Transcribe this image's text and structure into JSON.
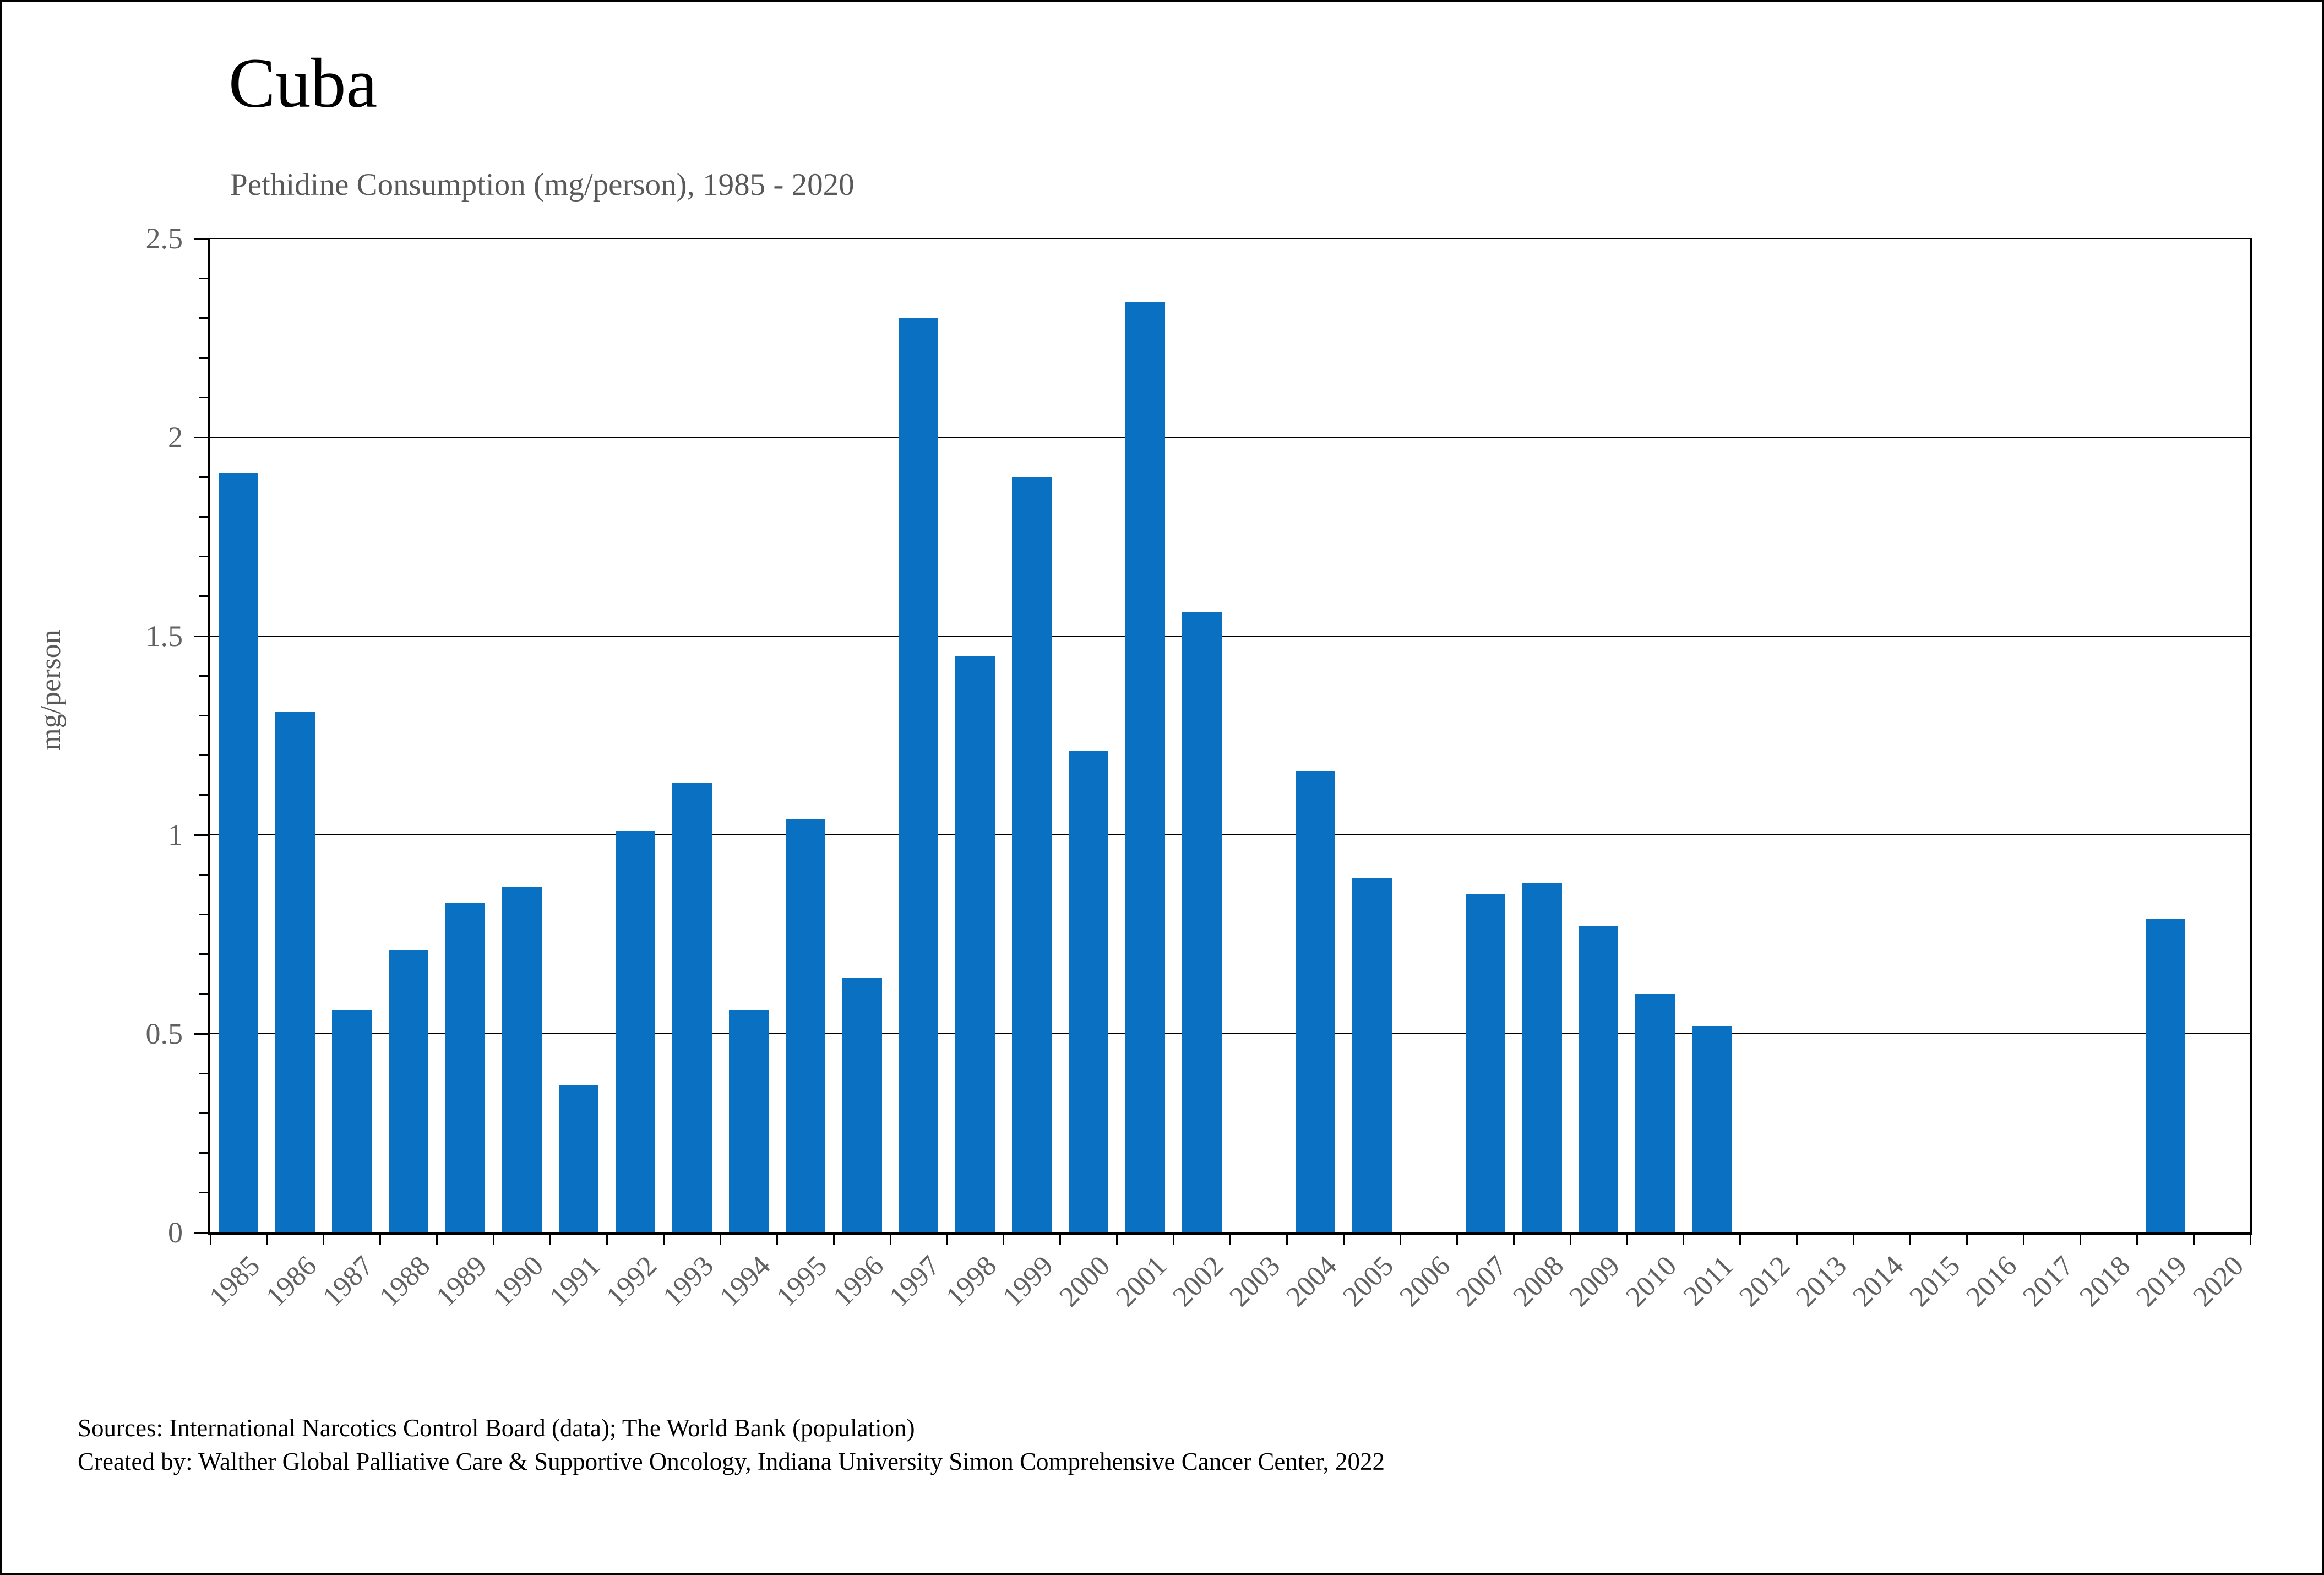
{
  "header": {
    "title": "Cuba",
    "subtitle": "Pethidine Consumption (mg/person), 1985 - 2020"
  },
  "footer": {
    "line1": "Sources: International Narcotics Control Board (data); The World Bank (population)",
    "line2": "Created by: Walther Global Palliative Care & Supportive Oncology, Indiana University Simon Comprehensive Cancer Center, 2022"
  },
  "chart_data": {
    "type": "bar",
    "title": "Cuba",
    "subtitle": "Pethidine Consumption (mg/person), 1985 - 2020",
    "xlabel": "",
    "ylabel": "mg/person",
    "ylim": [
      0,
      2.5
    ],
    "ytick_step": 0.5,
    "y_minor_tick_step": 0.1,
    "grid": true,
    "legend": "none",
    "bar_color": "#0a70c2",
    "axis_color": "#000000",
    "tick_label_color": "#616161",
    "categories": [
      "1985",
      "1986",
      "1987",
      "1988",
      "1989",
      "1990",
      "1991",
      "1992",
      "1993",
      "1994",
      "1995",
      "1996",
      "1997",
      "1998",
      "1999",
      "2000",
      "2001",
      "2002",
      "2003",
      "2004",
      "2005",
      "2006",
      "2007",
      "2008",
      "2009",
      "2010",
      "2011",
      "2012",
      "2013",
      "2014",
      "2015",
      "2016",
      "2017",
      "2018",
      "2019",
      "2020"
    ],
    "values": [
      1.91,
      1.31,
      0.56,
      0.71,
      0.83,
      0.87,
      0.37,
      1.01,
      1.13,
      0.56,
      1.04,
      0.64,
      2.3,
      1.45,
      1.9,
      1.21,
      2.34,
      1.56,
      0,
      1.16,
      0.89,
      0,
      0.85,
      0.88,
      0.77,
      0.6,
      0.52,
      0,
      0,
      0,
      0,
      0,
      0,
      0,
      0.79,
      0
    ]
  }
}
